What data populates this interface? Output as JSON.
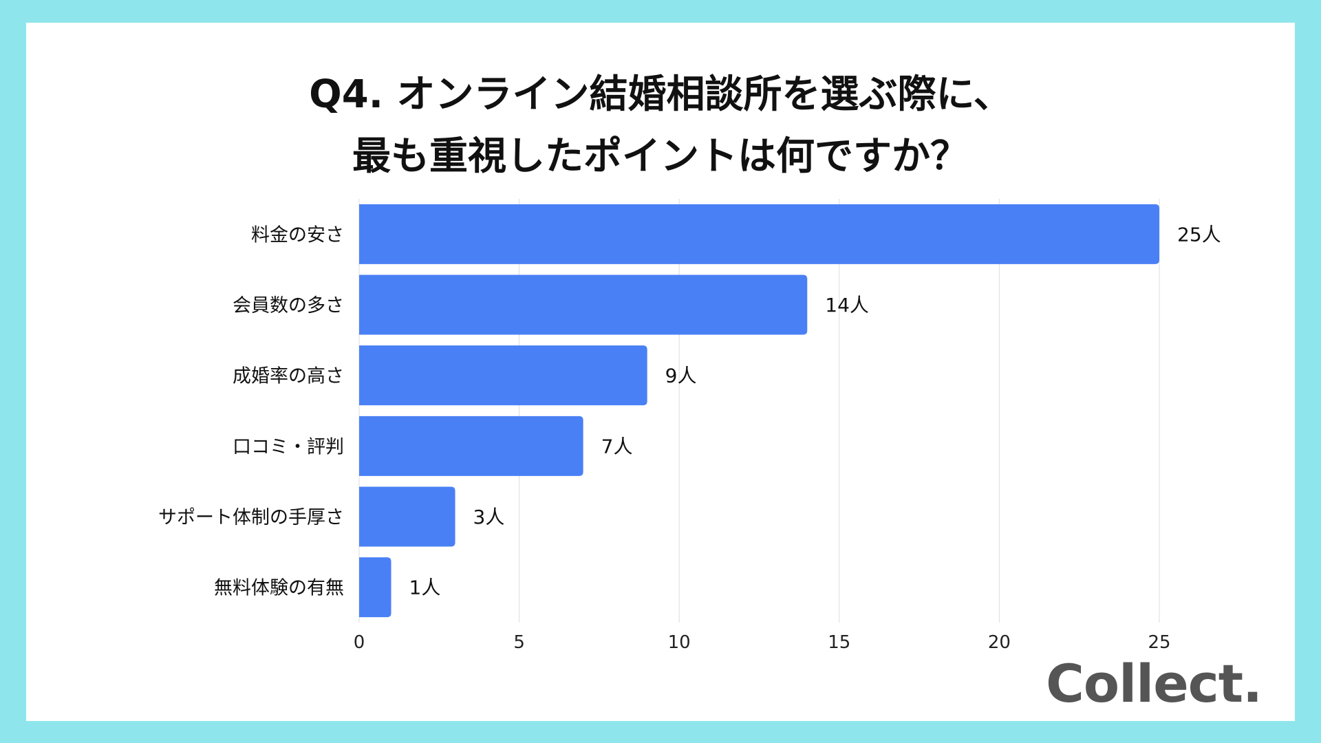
{
  "title": {
    "line1": "Q4. オンライン結婚相談所を選ぶ際に、",
    "line2": "最も重視したポイントは何ですか？"
  },
  "logo": "Collect.",
  "colors": {
    "frame": "#8ee6ec",
    "bar": "#4a80f5",
    "grid": "#dddddd",
    "text": "#111111"
  },
  "chart_data": {
    "type": "bar",
    "orientation": "horizontal",
    "categories": [
      "料金の安さ",
      "会員数の多さ",
      "成婚率の高さ",
      "口コミ・評判",
      "サポート体制の手厚さ",
      "無料体験の有無"
    ],
    "values": [
      25,
      14,
      9,
      7,
      3,
      1
    ],
    "data_labels": [
      "25人",
      "14人",
      "9人",
      "7人",
      "3人",
      "1人"
    ],
    "xlim": [
      0,
      25
    ],
    "xticks": [
      0,
      5,
      10,
      15,
      20,
      25
    ],
    "grid": true
  }
}
